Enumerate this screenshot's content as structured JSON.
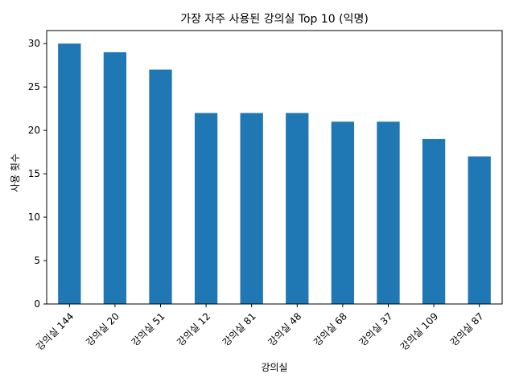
{
  "chart_data": {
    "type": "bar",
    "title": "가장 자주 사용된 강의실 Top 10 (익명)",
    "xlabel": "강의실",
    "ylabel": "사용 횟수",
    "categories": [
      "강의실 144",
      "강의실 20",
      "강의실 51",
      "강의실 12",
      "강의실 81",
      "강의실 48",
      "강의실 68",
      "강의실 37",
      "강의실 109",
      "강의실 87"
    ],
    "values": [
      30,
      29,
      27,
      22,
      22,
      22,
      21,
      21,
      19,
      17
    ],
    "ylim": [
      0,
      31.5
    ],
    "yticks": [
      0,
      5,
      10,
      15,
      20,
      25,
      30
    ],
    "bar_color": "#1f77b4",
    "grid": false,
    "legend": "none"
  }
}
